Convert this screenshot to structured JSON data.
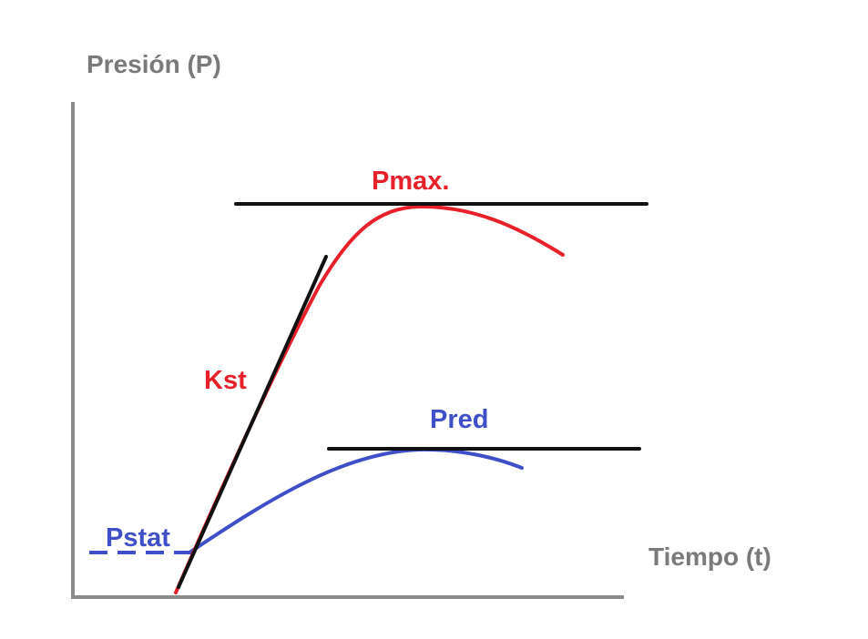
{
  "axes": {
    "y_label": "Presión (P)",
    "x_label": "Tiempo (t)"
  },
  "labels": {
    "pmax": "Pmax.",
    "kst": "Kst",
    "pred": "Pred",
    "pstat": "Pstat"
  },
  "colors": {
    "axis_label": "#7a7a7a",
    "axis_line": "#8a8a8a",
    "red_curve": "#e8202a",
    "blue_curve": "#3f4fc8",
    "reference_line": "#111111"
  }
}
